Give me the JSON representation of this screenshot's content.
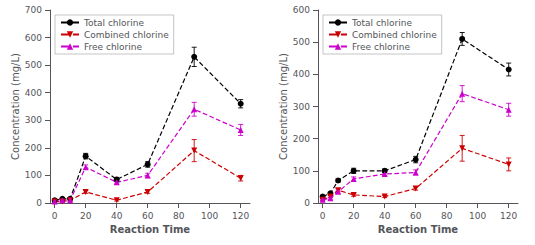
{
  "chart_data": [
    {
      "type": "line",
      "xlabel": "Reaction Time",
      "ylabel": "Concentration (mg/L)",
      "x": [
        0,
        5,
        10,
        20,
        40,
        60,
        90,
        120
      ],
      "xlim": [
        -3,
        126
      ],
      "xticks": [
        0,
        20,
        40,
        60,
        80,
        100,
        120
      ],
      "ylim": [
        0,
        700
      ],
      "yticks": [
        0,
        100,
        200,
        300,
        400,
        500,
        600,
        700
      ],
      "grid": false,
      "legend": "upper left",
      "line_style": "dashed",
      "series": [
        {
          "name": "Total chlorine",
          "color": "#000000",
          "marker": "circle",
          "values": [
            10,
            15,
            15,
            170,
            85,
            140,
            530,
            360
          ],
          "errors": [
            5,
            3,
            3,
            10,
            8,
            10,
            35,
            15
          ]
        },
        {
          "name": "Combined chlorine",
          "color": "#cc0000",
          "marker": "triangle-down",
          "values": [
            5,
            5,
            10,
            40,
            10,
            40,
            190,
            90
          ],
          "errors": [
            2,
            2,
            3,
            5,
            3,
            5,
            40,
            10
          ]
        },
        {
          "name": "Free chlorine",
          "color": "#cc00cc",
          "marker": "triangle-up",
          "values": [
            5,
            10,
            10,
            130,
            75,
            100,
            340,
            265
          ],
          "errors": [
            3,
            2,
            3,
            8,
            6,
            8,
            25,
            20
          ]
        }
      ]
    },
    {
      "type": "line",
      "xlabel": "Reaction Time",
      "ylabel": "Concentration (mg/L)",
      "x": [
        0,
        5,
        10,
        20,
        40,
        60,
        90,
        120
      ],
      "xlim": [
        -3,
        126
      ],
      "xticks": [
        0,
        20,
        40,
        60,
        80,
        100,
        120
      ],
      "ylim": [
        0,
        600
      ],
      "yticks": [
        0,
        100,
        200,
        300,
        400,
        500,
        600
      ],
      "grid": false,
      "legend": "upper left",
      "line_style": "dashed",
      "series": [
        {
          "name": "Total chlorine",
          "color": "#000000",
          "marker": "circle",
          "values": [
            20,
            30,
            70,
            100,
            100,
            135,
            510,
            415
          ],
          "errors": [
            4,
            3,
            5,
            8,
            6,
            10,
            20,
            20
          ]
        },
        {
          "name": "Combined chlorine",
          "color": "#cc0000",
          "marker": "triangle-down",
          "values": [
            10,
            20,
            40,
            25,
            20,
            45,
            170,
            120
          ],
          "errors": [
            2,
            3,
            5,
            4,
            3,
            5,
            40,
            20
          ]
        },
        {
          "name": "Free chlorine",
          "color": "#cc00cc",
          "marker": "triangle-up",
          "values": [
            10,
            15,
            35,
            75,
            90,
            95,
            340,
            290
          ],
          "errors": [
            3,
            3,
            5,
            6,
            5,
            8,
            25,
            20
          ]
        }
      ]
    }
  ]
}
